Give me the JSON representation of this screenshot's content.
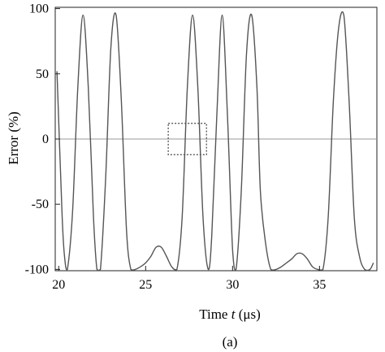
{
  "chart_data": {
    "type": "line",
    "xlabel_prefix": "Time ",
    "xlabel_var": "t",
    "xlabel_unit": " (μs)",
    "ylabel": "Error (%)",
    "caption": "(a)",
    "xlim": [
      19.8,
      38.3
    ],
    "ylim": [
      -101,
      101
    ],
    "x_ticks": [
      20,
      25,
      30,
      35
    ],
    "y_ticks": [
      100,
      50,
      0,
      -50,
      -100
    ],
    "grid": false,
    "zero_line": true,
    "highlight_box": {
      "x": [
        26.3,
        28.5
      ],
      "y": [
        -12,
        12
      ]
    },
    "colors": {
      "line": "#555555",
      "zero_line": "#999999",
      "box": "#444444"
    },
    "series": [
      {
        "x": [
          19.9,
          20.2,
          20.35,
          20.5,
          20.8,
          21.1,
          21.4,
          21.7,
          22.0,
          22.2,
          22.4,
          22.7,
          23.0,
          23.3,
          23.6,
          23.9,
          24.15,
          24.4,
          24.7,
          25.0,
          25.3,
          25.6,
          25.9,
          26.2,
          26.5,
          26.8,
          27.1,
          27.4,
          27.7,
          28.0,
          28.3,
          28.6,
          28.8,
          29.1,
          29.4,
          29.7,
          30.0,
          30.2,
          30.5,
          30.8,
          31.1,
          31.4,
          31.6,
          31.9,
          32.2,
          32.5,
          32.8,
          33.1,
          33.4,
          33.7,
          34.0,
          34.3,
          34.6,
          34.9,
          35.2,
          35.5,
          35.8,
          36.1,
          36.4,
          36.7,
          37.0,
          37.3,
          37.6,
          37.9,
          38.1
        ],
        "y": [
          52,
          -60,
          -92,
          -100,
          -55,
          40,
          95,
          40,
          -60,
          -100,
          -100,
          -30,
          70,
          95,
          30,
          -70,
          -100,
          -100,
          -98,
          -95,
          -90,
          -83,
          -83,
          -90,
          -98,
          -100,
          -60,
          40,
          95,
          40,
          -60,
          -100,
          -75,
          20,
          95,
          20,
          -85,
          -100,
          -40,
          65,
          95,
          40,
          -40,
          -80,
          -100,
          -100,
          -98,
          -95,
          -92,
          -88,
          -88,
          -92,
          -98,
          -100,
          -100,
          -60,
          30,
          85,
          95,
          30,
          -60,
          -90,
          -100,
          -100,
          -95
        ]
      }
    ]
  }
}
